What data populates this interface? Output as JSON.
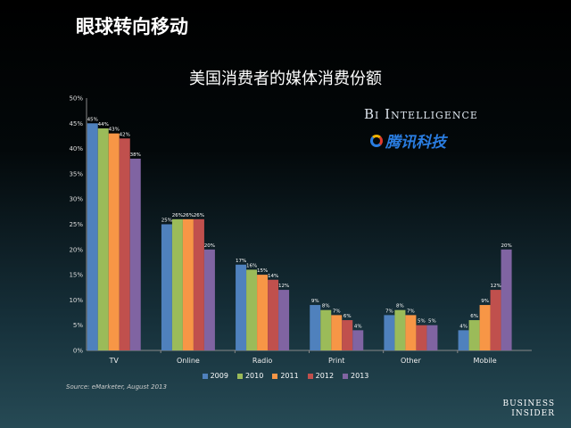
{
  "slide_title": "眼球转向移动",
  "logos": {
    "bi_intelligence": "BI Intelligence",
    "tencent": "腾讯科技",
    "business_insider": [
      "BUSINESS",
      "INSIDER"
    ]
  },
  "chart_data": {
    "type": "bar",
    "title": "美国消费者的媒体消费份额",
    "categories": [
      "TV",
      "Online",
      "Radio",
      "Print",
      "Other",
      "Mobile"
    ],
    "series": [
      {
        "name": "2009",
        "color": "#4f81bd",
        "values": [
          45,
          25,
          17,
          9,
          7,
          4
        ]
      },
      {
        "name": "2010",
        "color": "#9bbb59",
        "values": [
          44,
          26,
          16,
          8,
          8,
          6
        ]
      },
      {
        "name": "2011",
        "color": "#f79646",
        "values": [
          43,
          26,
          15,
          7,
          7,
          9
        ]
      },
      {
        "name": "2012",
        "color": "#c0504d",
        "values": [
          42,
          26,
          14,
          6,
          5,
          12
        ]
      },
      {
        "name": "2013",
        "color": "#8064a2",
        "values": [
          38,
          20,
          12,
          4,
          5,
          20
        ]
      }
    ],
    "ylim": [
      0,
      50
    ],
    "yticks": [
      "0%",
      "5%",
      "10%",
      "15%",
      "20%",
      "25%",
      "30%",
      "35%",
      "40%",
      "45%",
      "50%"
    ],
    "legend": "bottom",
    "source": "Source: eMarketer, August 2013"
  }
}
